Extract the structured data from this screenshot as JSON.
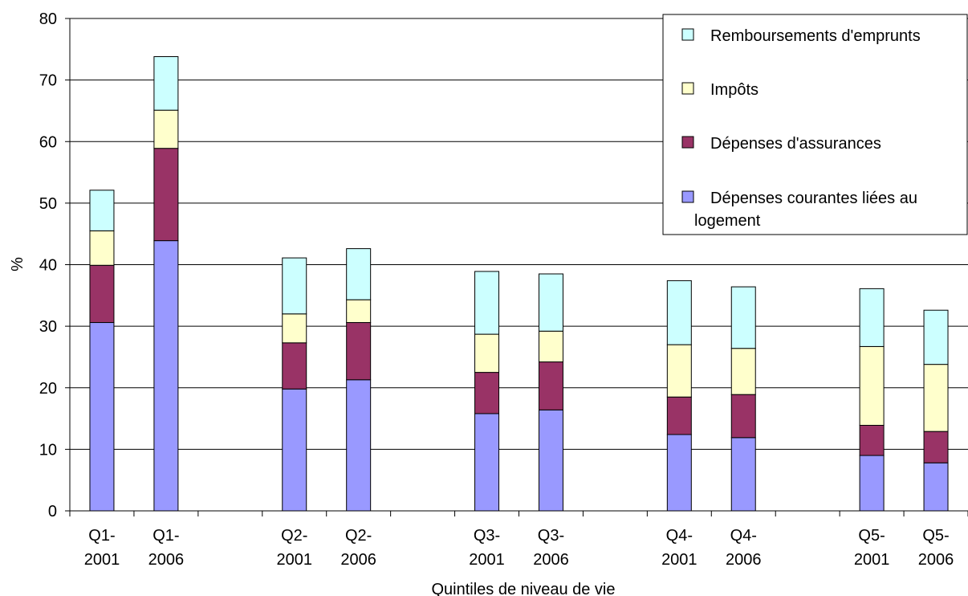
{
  "chart_data": {
    "type": "bar",
    "stacked": true,
    "categories": [
      [
        "Q1-",
        "2001"
      ],
      [
        "Q1-",
        "2006"
      ],
      [
        "",
        ""
      ],
      [
        "Q2-",
        "2001"
      ],
      [
        "Q2-",
        "2006"
      ],
      [
        "",
        ""
      ],
      [
        "Q3-",
        "2001"
      ],
      [
        "Q3-",
        "2006"
      ],
      [
        "",
        ""
      ],
      [
        "Q4-",
        "2001"
      ],
      [
        "Q4-",
        "2006"
      ],
      [
        "",
        ""
      ],
      [
        "Q5-",
        "2001"
      ],
      [
        "Q5-",
        "2006"
      ]
    ],
    "series": [
      {
        "name": "Dépenses courantes liées au logement",
        "legend_lines": [
          "Dépenses courantes liées au",
          "logement"
        ],
        "color": "#9999ff",
        "values": [
          30.6,
          43.9,
          null,
          19.8,
          21.3,
          null,
          15.8,
          16.4,
          null,
          12.4,
          11.9,
          null,
          9.0,
          7.8
        ]
      },
      {
        "name": "Dépenses d'assurances",
        "legend_lines": [
          "Dépenses d'assurances"
        ],
        "color": "#993366",
        "values": [
          9.3,
          15.0,
          null,
          7.5,
          9.3,
          null,
          6.7,
          7.8,
          null,
          6.1,
          7.0,
          null,
          4.9,
          5.1
        ]
      },
      {
        "name": "Impôts",
        "legend_lines": [
          "Impôts"
        ],
        "color": "#ffffcc",
        "values": [
          5.6,
          6.2,
          null,
          4.7,
          3.7,
          null,
          6.2,
          5.0,
          null,
          8.5,
          7.5,
          null,
          12.8,
          10.9
        ]
      },
      {
        "name": "Remboursements d'emprunts",
        "legend_lines": [
          "Remboursements d'emprunts"
        ],
        "color": "#ccffff",
        "values": [
          6.6,
          8.7,
          null,
          9.1,
          8.3,
          null,
          10.2,
          9.3,
          null,
          10.4,
          10.0,
          null,
          9.4,
          8.8
        ]
      }
    ],
    "xlabel": "Quintiles de niveau de vie",
    "ylabel": "%",
    "ylim": [
      0,
      80
    ],
    "yticks": [
      "0",
      "10",
      "20",
      "30",
      "40",
      "50",
      "60",
      "70",
      "80"
    ],
    "grid": true,
    "legend_position": "top-right",
    "legend_order": [
      3,
      2,
      1,
      0
    ]
  }
}
